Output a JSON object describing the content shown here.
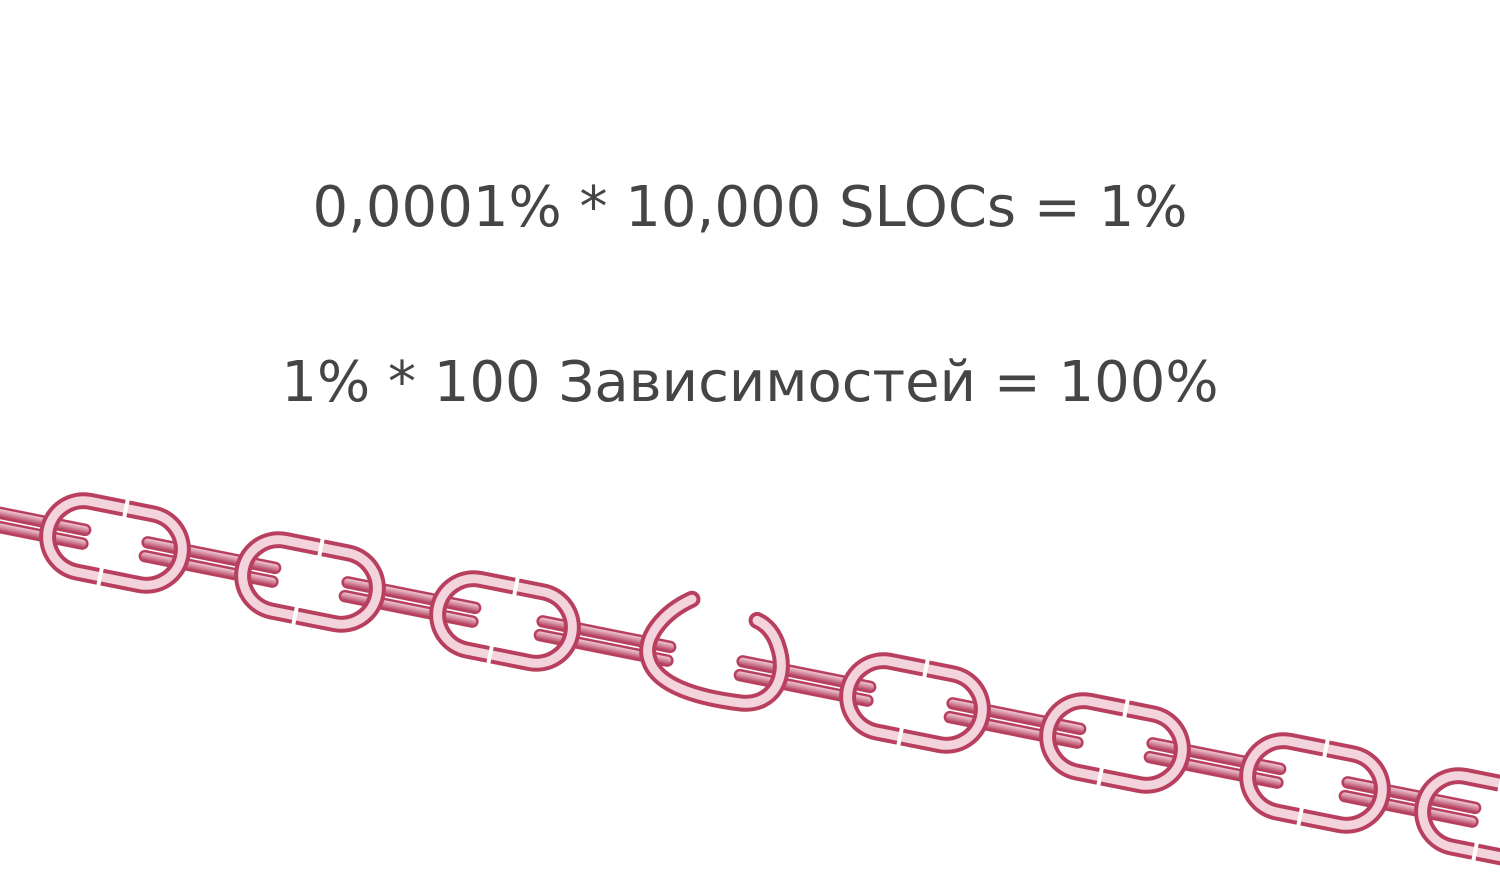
{
  "slide": {
    "formula_line_1": "0,0001% * 10,000 SLOCs = 1%",
    "formula_line_2": "1% * 100 Зависимостей = 100%"
  },
  "illustration": {
    "subject": "broken-chain",
    "link_color": "#b8405e",
    "highlight_color": "#f3d3dc"
  }
}
